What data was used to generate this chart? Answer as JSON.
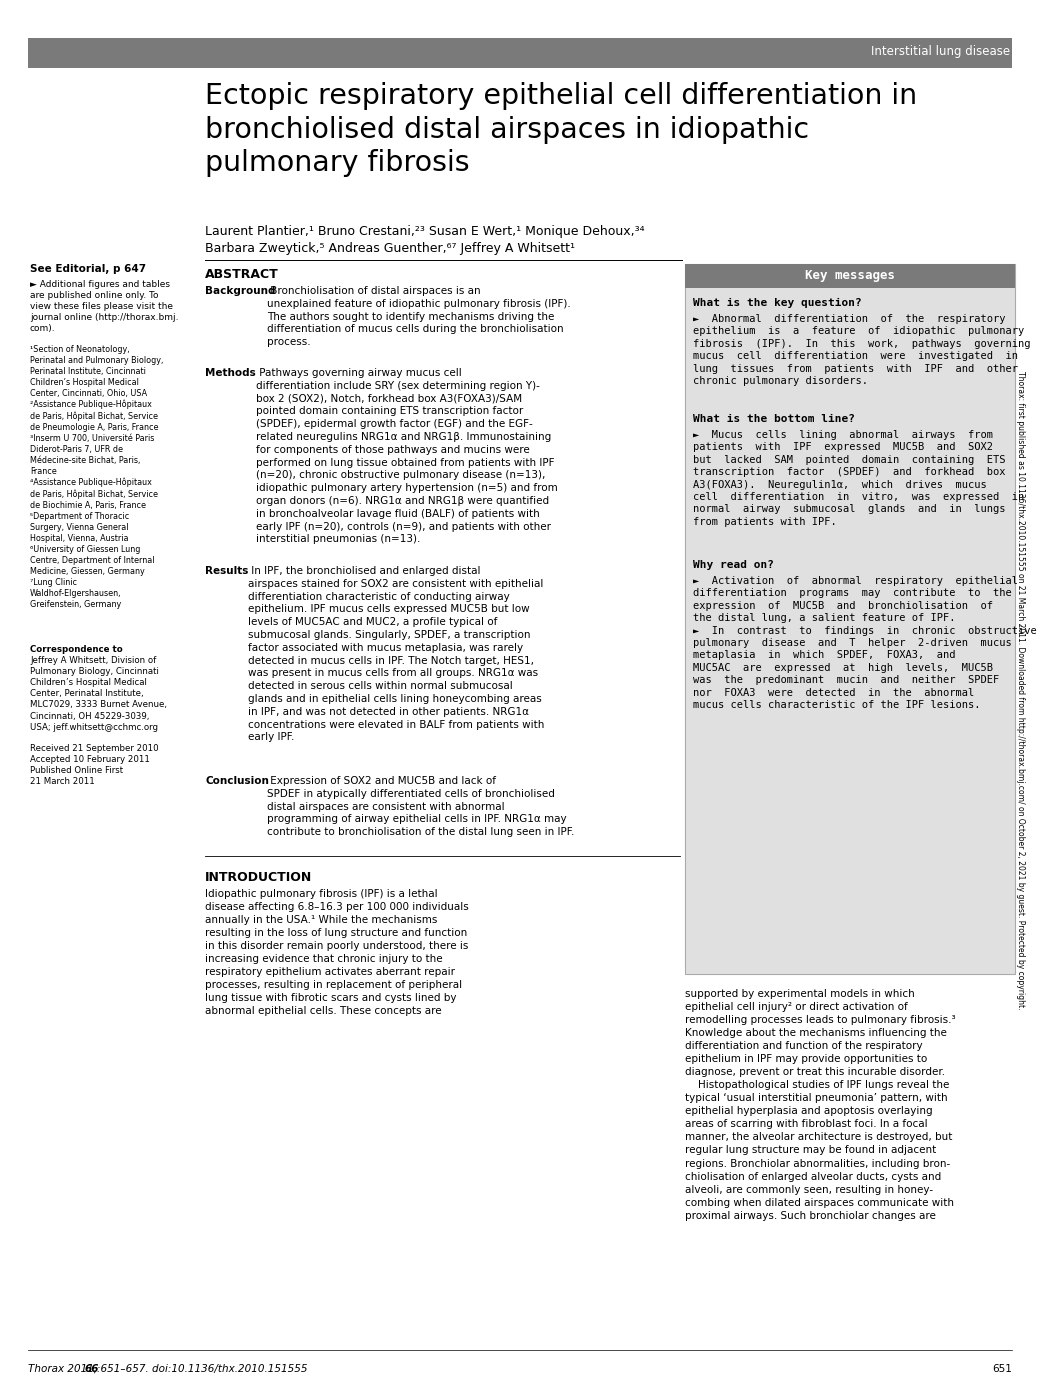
{
  "background_color": "#ffffff",
  "header_bar_color": "#7a7a7a",
  "header_text": "Interstitial lung disease",
  "header_text_color": "#ffffff",
  "title": "Ectopic respiratory epithelial cell differentiation in\nbronchiolised distal airspaces in idiopathic\npulmonary fibrosis",
  "authors_line1": "Laurent Plantier,¹ Bruno Crestani,²³ Susan E Wert,¹ Monique Dehoux,³⁴",
  "authors_line2": "Barbara Zweytick,⁵ Andreas Guenther,⁶⁷ Jeffrey A Whitsett¹",
  "see_editorial": "See Editorial, p 647",
  "see_editorial_note": "► Additional figures and tables\nare published online only. To\nview these files please visit the\njournal online (http://thorax.bmj.\ncom).",
  "footnotes": "¹Section of Neonatology,\nPerinatal and Pulmonary Biology,\nPerinatal Institute, Cincinnati\nChildren’s Hospital Medical\nCenter, Cincinnati, Ohio, USA\n²Assistance Publique-Hôpitaux\nde Paris, Hôpital Bichat, Service\nde Pneumologie A, Paris, France\n³Inserm U 700, Université Paris\nDiderot-Paris 7, UFR de\nMédecine-site Bichat, Paris,\nFrance\n⁴Assistance Publique-Hôpitaux\nde Paris, Hôpital Bichat, Service\nde Biochimie A, Paris, France\n⁵Department of Thoracic\nSurgery, Vienna General\nHospital, Vienna, Austria\n⁶University of Giessen Lung\nCentre, Department of Internal\nMedicine, Giessen, Germany\n⁷Lung Clinic\nWaldhof-Elgershausen,\nGreifenstein, Germany",
  "correspondence_label": "Correspondence to",
  "correspondence_body": "Jeffrey A Whitsett, Division of\nPulmonary Biology, Cincinnati\nChildren’s Hospital Medical\nCenter, Perinatal Institute,\nMLC7029, 3333 Burnet Avenue,\nCincinnati, OH 45229-3039,\nUSA; jeff.whitsett@cchmc.org",
  "received": "Received 21 September 2010\nAccepted 10 February 2011\nPublished Online First\n21 March 2011",
  "abstract_title": "ABSTRACT",
  "abstract_bg_bold": "Background",
  "abstract_bg_text": " Bronchiolisation of distal airspaces is an\nunexplained feature of idiopathic pulmonary fibrosis (IPF).\nThe authors sought to identify mechanisms driving the\ndifferentiation of mucus cells during the bronchiolisation\nprocess.",
  "abstract_meth_bold": "Methods",
  "abstract_meth_text": " Pathways governing airway mucus cell\ndifferentiation include SRY (sex determining region Y)-\nbox 2 (SOX2), Notch, forkhead box A3(FOXA3)/SAM\npointed domain containing ETS transcription factor\n(SPDEF), epidermal growth factor (EGF) and the EGF-\nrelated neuregulins NRG1α and NRG1β. Immunostaining\nfor components of those pathways and mucins were\nperformed on lung tissue obtained from patients with IPF\n(n=20), chronic obstructive pulmonary disease (n=13),\nidiopathic pulmonary artery hypertension (n=5) and from\norgan donors (n=6). NRG1α and NRG1β were quantified\nin bronchoalveolar lavage fluid (BALF) of patients with\nearly IPF (n=20), controls (n=9), and patients with other\ninterstitial pneumonias (n=13).",
  "abstract_res_bold": "Results",
  "abstract_res_text": " In IPF, the bronchiolised and enlarged distal\nairspaces stained for SOX2 are consistent with epithelial\ndifferentiation characteristic of conducting airway\nepithelium. IPF mucus cells expressed MUC5B but low\nlevels of MUC5AC and MUC2, a profile typical of\nsubmucosal glands. Singularly, SPDEF, a transcription\nfactor associated with mucus metaplasia, was rarely\ndetected in mucus cells in IPF. The Notch target, HES1,\nwas present in mucus cells from all groups. NRG1α was\ndetected in serous cells within normal submucosal\nglands and in epithelial cells lining honeycombing areas\nin IPF, and was not detected in other patients. NRG1α\nconcentrations were elevated in BALF from patients with\nearly IPF.",
  "abstract_conc_bold": "Conclusion",
  "abstract_conc_text": " Expression of SOX2 and MUC5B and lack of\nSPDEF in atypically differentiated cells of bronchiolised\ndistal airspaces are consistent with abnormal\nprogramming of airway epithelial cells in IPF. NRG1α may\ncontribute to bronchiolisation of the distal lung seen in IPF.",
  "key_messages_title": "Key messages",
  "key_question_title": "What is the key question?",
  "key_question_text": "►  Abnormal  differentiation  of  the  respiratory\nepithelium  is  a  feature  of  idiopathic  pulmonary\nfibrosis  (IPF).  In  this  work,  pathways  governing\nmucus  cell  differentiation  were  investigated  in\nlung  tissues  from  patients  with  IPF  and  other\nchronic pulmonary disorders.",
  "key_bottom_title": "What is the bottom line?",
  "key_bottom_text": "►  Mucus  cells  lining  abnormal  airways  from\npatients  with  IPF  expressed  MUC5B  and  SOX2\nbut  lacked  SAM  pointed  domain  containing  ETS\ntranscription  factor  (SPDEF)  and  forkhead  box\nA3(FOXA3).  Neuregulin1α,  which  drives  mucus\ncell  differentiation  in  vitro,  was  expressed  in\nnormal  airway  submucosal  glands  and  in  lungs\nfrom patients with IPF.",
  "key_read_title": "Why read on?",
  "key_read_text": "►  Activation  of  abnormal  respiratory  epithelial\ndifferentiation  programs  may  contribute  to  the\nexpression  of  MUC5B  and  bronchiolisation  of\nthe distal lung, a salient feature of IPF.\n►  In  contrast  to  findings  in  chronic  obstructive\npulmonary  disease  and  T  helper  2-driven  mucus\nmetaplasia  in  which  SPDEF,  FOXA3,  and\nMUC5AC  are  expressed  at  high  levels,  MUC5B\nwas  the  predominant  mucin  and  neither  SPDEF\nnor  FOXA3  were  detected  in  the  abnormal\nmucus cells characteristic of the IPF lesions.",
  "intro_title": "INTRODUCTION",
  "intro_left_text": "Idiopathic pulmonary fibrosis (IPF) is a lethal\ndisease affecting 6.8–16.3 per 100 000 individuals\nannually in the USA.¹ While the mechanisms\nresulting in the loss of lung structure and function\nin this disorder remain poorly understood, there is\nincreasing evidence that chronic injury to the\nrespiratory epithelium activates aberrant repair\nprocesses, resulting in replacement of peripheral\nlung tissue with fibrotic scars and cysts lined by\nabnormal epithelial cells. These concepts are",
  "intro_right_text": "supported by experimental models in which\nepithelial cell injury² or direct activation of\nremodelling processes leads to pulmonary fibrosis.³\nKnowledge about the mechanisms influencing the\ndifferentiation and function of the respiratory\nepithelium in IPF may provide opportunities to\ndiagnose, prevent or treat this incurable disorder.\n    Histopathological studies of IPF lungs reveal the\ntypical ‘usual interstitial pneumonia’ pattern, with\nepithelial hyperplasia and apoptosis overlaying\nareas of scarring with fibroblast foci. In a focal\nmanner, the alveolar architecture is destroyed, but\nregular lung structure may be found in adjacent\nregions. Bronchiolar abnormalities, including bron-\nchiolisation of enlarged alveolar ducts, cysts and\nalveoli, are commonly seen, resulting in honey-\ncombing when dilated airspaces communicate with\nproximal airways. Such bronchiolar changes are",
  "footer_left": "Thorax 2011;",
  "footer_left_bold": "66",
  "footer_left_rest": ":651–657. doi:10.1136/thx.2010.151555",
  "footer_page": "651",
  "side_text": "Thorax: first published as 10.1136/thx.2010.151555 on 21 March 2011. Downloaded from http://thorax.bmj.com/ on October 2, 2021 by guest. Protected by copyright.",
  "key_messages_bg": "#e0e0e0",
  "key_messages_header_bg": "#7a7a7a",
  "key_messages_header_color": "#ffffff"
}
